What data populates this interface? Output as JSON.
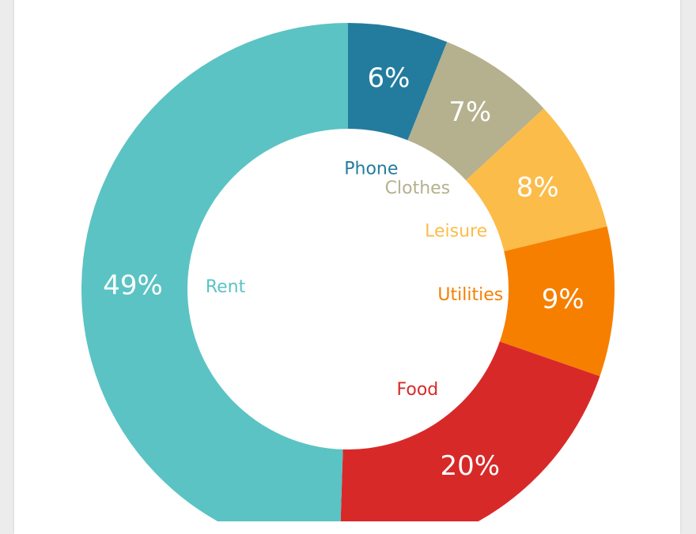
{
  "chart_data": {
    "type": "donut",
    "title": "",
    "categories": [
      "Phone",
      "Clothes",
      "Leisure",
      "Utilities",
      "Food",
      "Rent"
    ],
    "values": [
      6,
      7,
      8,
      9,
      20,
      49
    ],
    "value_labels": [
      "6%",
      "7%",
      "8%",
      "9%",
      "20%",
      "49%"
    ],
    "colors": [
      "#237c9e",
      "#b5b08e",
      "#fcbc4a",
      "#f67f00",
      "#d82929",
      "#5bc3c4"
    ],
    "legend": "labels inside the hole, colored by slice"
  }
}
